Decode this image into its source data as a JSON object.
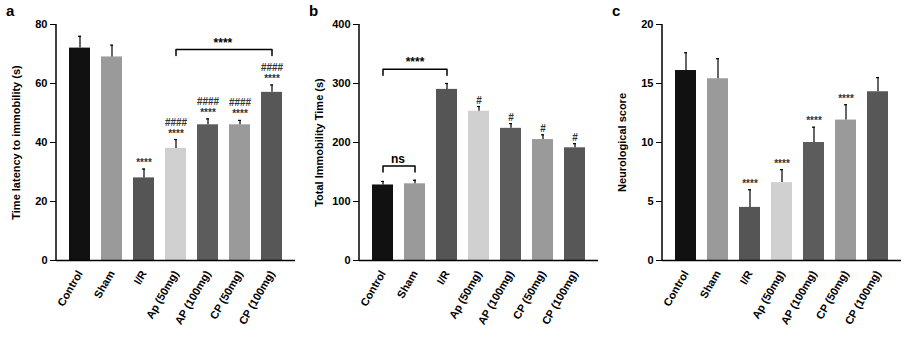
{
  "chart_data": [
    {
      "type": "bar",
      "panel": "a",
      "ylabel": "Time latency to immobility (s)",
      "categories": [
        "Control",
        "Sham",
        "I/R",
        "Ap (50mg)",
        "AP (100mg)",
        "CP (50mg)",
        "CP (100mg)"
      ],
      "values": [
        72,
        69,
        28,
        38,
        46,
        46,
        57
      ],
      "errors": [
        4,
        4,
        3,
        3,
        2,
        1.5,
        2.5
      ],
      "colors": [
        "#111111",
        "#9a9a9a",
        "#555555",
        "#d0d0d0",
        "#5c5c5c",
        "#9a9a9a",
        "#575757"
      ],
      "ylim": [
        0,
        80
      ],
      "yticks": [
        0,
        20,
        40,
        60,
        80
      ],
      "grid": false,
      "significance": [
        {
          "category": "I/R",
          "labels": [
            "****"
          ]
        },
        {
          "category": "Ap (50mg)",
          "labels": [
            "####",
            "****"
          ]
        },
        {
          "category": "AP (100mg)",
          "labels": [
            "####",
            "****"
          ]
        },
        {
          "category": "CP (50mg)",
          "labels": [
            "####",
            "****"
          ]
        },
        {
          "category": "CP (100mg)",
          "labels": [
            "####",
            "****"
          ]
        }
      ],
      "brackets": [
        {
          "from": "Ap (50mg)",
          "to": "CP (100mg)",
          "label": "****"
        }
      ]
    },
    {
      "type": "bar",
      "panel": "b",
      "ylabel": "Total Immobility Time (s)",
      "categories": [
        "Control",
        "Sham",
        "I/R",
        "Ap (50mg)",
        "AP (100mg)",
        "CP (50mg)",
        "CP (100mg)"
      ],
      "values": [
        128,
        130,
        290,
        253,
        224,
        205,
        191
      ],
      "errors": [
        6,
        6,
        10,
        8,
        8,
        8,
        7
      ],
      "colors": [
        "#111111",
        "#9a9a9a",
        "#555555",
        "#d0d0d0",
        "#5c5c5c",
        "#9a9a9a",
        "#575757"
      ],
      "ylim": [
        0,
        400
      ],
      "yticks": [
        0,
        100,
        200,
        300,
        400
      ],
      "grid": false,
      "significance": [
        {
          "category": "Ap (50mg)",
          "labels": [
            "#"
          ]
        },
        {
          "category": "AP (100mg)",
          "labels": [
            "#"
          ]
        },
        {
          "category": "CP (50mg)",
          "labels": [
            "#"
          ]
        },
        {
          "category": "CP (100mg)",
          "labels": [
            "#"
          ]
        }
      ],
      "brackets": [
        {
          "from": "Control",
          "to": "Sham",
          "label": "ns"
        },
        {
          "from": "Control",
          "to": "I/R",
          "label": "****"
        }
      ]
    },
    {
      "type": "bar",
      "panel": "c",
      "ylabel": "Neurological score",
      "categories": [
        "Control",
        "Sham",
        "I/R",
        "Ap (50mg)",
        "AP (100mg)",
        "CP (50mg)",
        "CP (100mg)"
      ],
      "values": [
        16.1,
        15.4,
        4.5,
        6.6,
        10,
        11.9,
        14.3
      ],
      "errors": [
        1.5,
        1.7,
        1.5,
        1.1,
        1.3,
        1.3,
        1.2
      ],
      "colors": [
        "#111111",
        "#9a9a9a",
        "#555555",
        "#d0d0d0",
        "#5c5c5c",
        "#9a9a9a",
        "#575757"
      ],
      "ylim": [
        0,
        20
      ],
      "yticks": [
        0,
        5,
        10,
        15,
        20
      ],
      "grid": false,
      "significance": [
        {
          "category": "I/R",
          "labels": [
            "****"
          ]
        },
        {
          "category": "Ap (50mg)",
          "labels": [
            "****"
          ]
        },
        {
          "category": "AP (100mg)",
          "labels": [
            "****"
          ]
        },
        {
          "category": "CP (50mg)",
          "labels": [
            "****"
          ]
        }
      ],
      "brackets": []
    }
  ]
}
